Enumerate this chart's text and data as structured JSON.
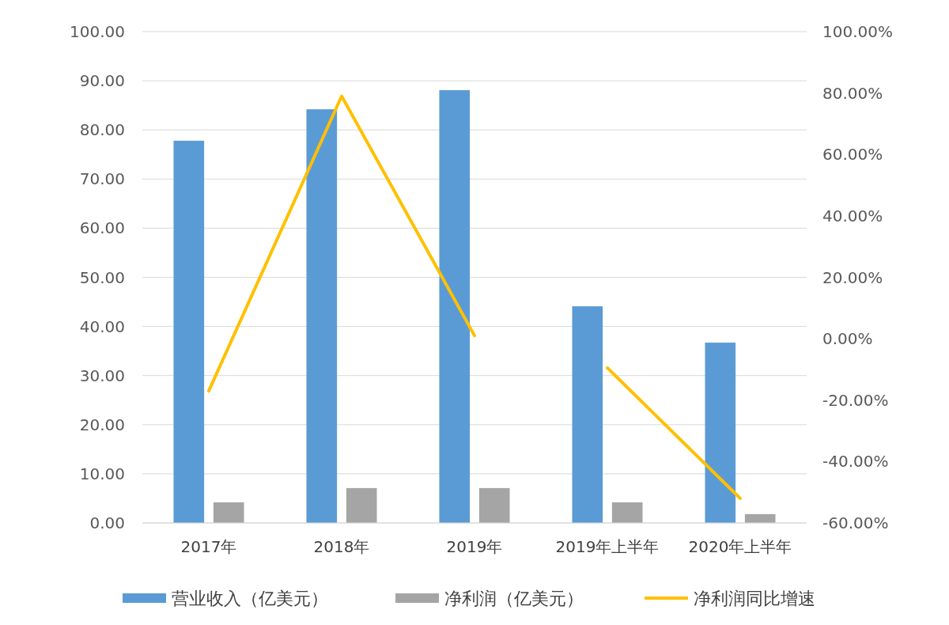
{
  "chart_data": {
    "type": "bar",
    "categories": [
      "2017年",
      "2018年",
      "2019年",
      "2019年上半年",
      "2020年上半年"
    ],
    "series": [
      {
        "name": "营业收入（亿美元）",
        "color": "#5b9bd5",
        "values": [
          77.8,
          84.2,
          88.1,
          44.1,
          36.7
        ]
      },
      {
        "name": "净利润（亿美元）",
        "color": "#a5a5a5",
        "values": [
          4.2,
          7.1,
          7.1,
          4.2,
          1.8
        ]
      },
      {
        "name": "净利润同比增速",
        "type": "line",
        "axis": "y2",
        "color": "#ffc000",
        "values": [
          -17,
          79,
          1,
          null,
          null
        ]
      },
      {
        "type": "line",
        "axis": "y2",
        "color": "#ffc000",
        "values": [
          null,
          null,
          null,
          -9.5,
          -52
        ]
      }
    ],
    "ylim": [
      0,
      100
    ],
    "yticks": [
      {
        "value": 0,
        "label": "0.00"
      },
      {
        "value": 10,
        "label": "10.00"
      },
      {
        "value": 20,
        "label": "20.00"
      },
      {
        "value": 30,
        "label": "30.00"
      },
      {
        "value": 40,
        "label": "40.00"
      },
      {
        "value": 50,
        "label": "50.00"
      },
      {
        "value": 60,
        "label": "60.00"
      },
      {
        "value": 70,
        "label": "70.00"
      },
      {
        "value": 80,
        "label": "80.00"
      },
      {
        "value": 90,
        "label": "90.00"
      },
      {
        "value": 100,
        "label": "100.00"
      }
    ],
    "y2lim": [
      -60,
      100
    ],
    "y2ticks": [
      {
        "value": -60,
        "label": "-60.00%"
      },
      {
        "value": -40,
        "label": "-40.00%"
      },
      {
        "value": -20,
        "label": "-20.00%"
      },
      {
        "value": 0,
        "label": "0.00%"
      },
      {
        "value": 20,
        "label": "20.00%"
      },
      {
        "value": 40,
        "label": "40.00%"
      },
      {
        "value": 60,
        "label": "60.00%"
      },
      {
        "value": 80,
        "label": "80.00%"
      },
      {
        "value": 100,
        "label": "100.00%"
      }
    ],
    "grid": "y",
    "legend": "bottom"
  }
}
